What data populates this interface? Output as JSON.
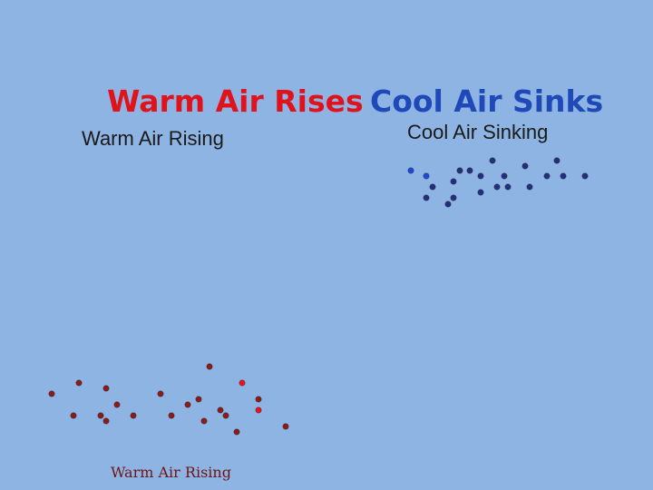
{
  "warm": {
    "title": "Warm Air Rises",
    "subtitle": "Warm Air Rising",
    "caption": "Warm Air Rising",
    "dot_color": "#8b1c1c",
    "accent_color": "#e8131c"
  },
  "cool": {
    "title": "Cool Air Sinks",
    "subtitle": "Cool Air Sinking",
    "dot_color": "#262f7d",
    "accent_color": "#1f49d6"
  }
}
